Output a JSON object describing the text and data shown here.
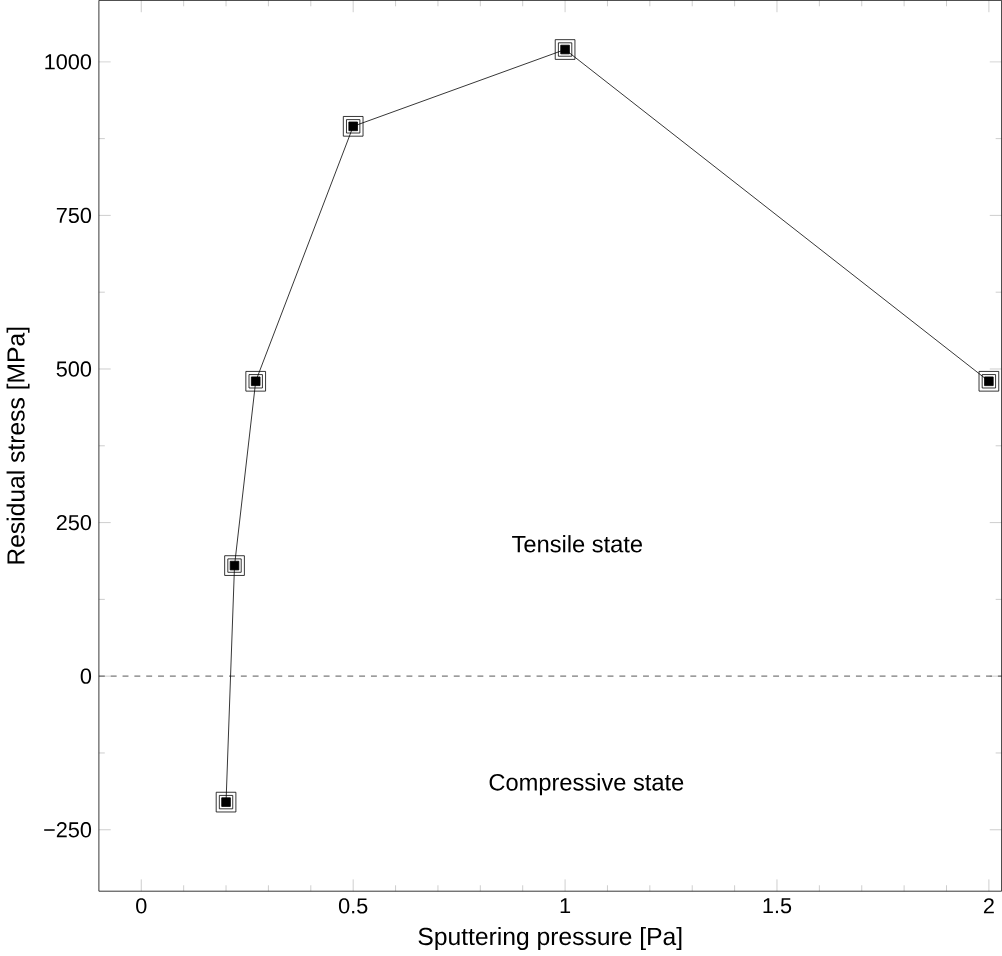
{
  "chart_data": {
    "type": "line",
    "xlabel": "Sputtering pressure [Pa]",
    "ylabel": "Residual stress [MPa]",
    "x": [
      0.2,
      0.22,
      0.27,
      0.5,
      1.0,
      2.0
    ],
    "values": [
      -205,
      180,
      480,
      895,
      1020,
      480
    ],
    "color": "#000000",
    "marker": "square",
    "line_style": "solid",
    "xlim": [
      -0.1,
      2.03
    ],
    "ylim": [
      -350,
      1100
    ],
    "xticks": [
      0,
      0.5,
      1,
      1.5,
      2
    ],
    "yticks": [
      {
        "value": -250,
        "label": "−250"
      },
      0,
      250,
      500,
      750,
      1000
    ],
    "ref_lines": [
      {
        "axis": "y",
        "value": 0,
        "line_style": "dashed"
      }
    ],
    "annotations": [
      "Tensile state",
      "Compressive state"
    ],
    "grid": false
  }
}
